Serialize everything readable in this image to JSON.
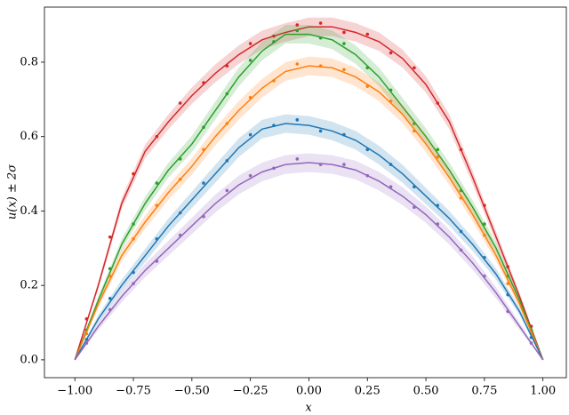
{
  "chart_data": {
    "type": "line",
    "xlabel": "x",
    "ylabel": "u(x) ± 2σ",
    "xlim": [
      -1.13,
      1.1
    ],
    "ylim": [
      -0.048,
      0.948
    ],
    "xticks": [
      {
        "value": -1,
        "label": "−1.00"
      },
      {
        "value": -0.75,
        "label": "−0.75"
      },
      {
        "value": -0.5,
        "label": "−0.50"
      },
      {
        "value": -0.25,
        "label": "−0.25"
      },
      {
        "value": 0,
        "label": "0.00"
      },
      {
        "value": 0.25,
        "label": "0.25"
      },
      {
        "value": 0.5,
        "label": "0.50"
      },
      {
        "value": 0.75,
        "label": "0.75"
      },
      {
        "value": 1,
        "label": "1.00"
      }
    ],
    "yticks": [
      {
        "value": 0,
        "label": "0.0"
      },
      0.2,
      0.4,
      0.6,
      0.8
    ],
    "x": [
      -1,
      -0.9,
      -0.8,
      -0.7,
      -0.6,
      -0.5,
      -0.4,
      -0.3,
      -0.2,
      -0.1,
      0,
      0.1,
      0.2,
      0.3,
      0.4,
      0.5,
      0.6,
      0.7,
      0.8,
      0.9,
      1
    ],
    "obs_x": [
      -0.95,
      -0.85,
      -0.75,
      -0.65,
      -0.55,
      -0.45,
      -0.35,
      -0.25,
      -0.15,
      -0.05,
      0.05,
      0.15,
      0.25,
      0.35,
      0.45,
      0.55,
      0.65,
      0.75,
      0.85,
      0.95
    ],
    "series": [
      {
        "color": "#d62728",
        "values": [
          0,
          0.2,
          0.42,
          0.56,
          0.64,
          0.71,
          0.77,
          0.82,
          0.86,
          0.88,
          0.895,
          0.895,
          0.88,
          0.855,
          0.81,
          0.74,
          0.64,
          0.49,
          0.33,
          0.17,
          0
        ],
        "errors": [
          0,
          0.01,
          0.015,
          0.018,
          0.02,
          0.022,
          0.024,
          0.025,
          0.025,
          0.025,
          0.025,
          0.025,
          0.025,
          0.025,
          0.024,
          0.022,
          0.02,
          0.018,
          0.015,
          0.01,
          0
        ],
        "obs": [
          0.11,
          0.33,
          0.5,
          0.6,
          0.69,
          0.745,
          0.79,
          0.85,
          0.87,
          0.9,
          0.905,
          0.88,
          0.875,
          0.825,
          0.785,
          0.69,
          0.565,
          0.415,
          0.25,
          0.09
        ]
      },
      {
        "color": "#2ca02c",
        "values": [
          0,
          0.16,
          0.31,
          0.42,
          0.51,
          0.58,
          0.67,
          0.76,
          0.83,
          0.875,
          0.875,
          0.86,
          0.82,
          0.76,
          0.68,
          0.6,
          0.51,
          0.41,
          0.3,
          0.16,
          0
        ],
        "errors": [
          0,
          0.01,
          0.015,
          0.018,
          0.02,
          0.022,
          0.024,
          0.025,
          0.025,
          0.025,
          0.025,
          0.025,
          0.025,
          0.025,
          0.024,
          0.022,
          0.02,
          0.018,
          0.015,
          0.01,
          0
        ],
        "obs": [
          0.08,
          0.245,
          0.365,
          0.475,
          0.54,
          0.625,
          0.715,
          0.805,
          0.855,
          0.885,
          0.865,
          0.85,
          0.785,
          0.725,
          0.635,
          0.565,
          0.455,
          0.365,
          0.225,
          0.08
        ]
      },
      {
        "color": "#ff7f0e",
        "values": [
          0,
          0.15,
          0.28,
          0.37,
          0.45,
          0.52,
          0.6,
          0.67,
          0.73,
          0.775,
          0.79,
          0.785,
          0.76,
          0.72,
          0.66,
          0.58,
          0.49,
          0.39,
          0.28,
          0.15,
          0
        ],
        "errors": [
          0,
          0.01,
          0.015,
          0.018,
          0.02,
          0.022,
          0.024,
          0.025,
          0.025,
          0.025,
          0.025,
          0.025,
          0.025,
          0.025,
          0.024,
          0.022,
          0.02,
          0.018,
          0.015,
          0.01,
          0
        ],
        "obs": [
          0.07,
          0.225,
          0.325,
          0.415,
          0.485,
          0.565,
          0.635,
          0.705,
          0.75,
          0.795,
          0.79,
          0.78,
          0.735,
          0.695,
          0.615,
          0.545,
          0.435,
          0.335,
          0.205,
          0.07
        ]
      },
      {
        "color": "#1f77b4",
        "values": [
          0,
          0.11,
          0.2,
          0.28,
          0.36,
          0.43,
          0.5,
          0.57,
          0.62,
          0.635,
          0.63,
          0.615,
          0.59,
          0.55,
          0.5,
          0.44,
          0.38,
          0.31,
          0.23,
          0.13,
          0
        ],
        "errors": [
          0,
          0.01,
          0.015,
          0.018,
          0.02,
          0.022,
          0.024,
          0.025,
          0.025,
          0.025,
          0.025,
          0.025,
          0.025,
          0.025,
          0.024,
          0.022,
          0.02,
          0.018,
          0.015,
          0.01,
          0
        ],
        "obs": [
          0.055,
          0.165,
          0.235,
          0.325,
          0.395,
          0.475,
          0.535,
          0.605,
          0.63,
          0.645,
          0.615,
          0.605,
          0.565,
          0.525,
          0.465,
          0.415,
          0.345,
          0.275,
          0.175,
          0.06
        ]
      },
      {
        "color": "#9467bd",
        "values": [
          0,
          0.09,
          0.17,
          0.24,
          0.3,
          0.36,
          0.42,
          0.47,
          0.505,
          0.525,
          0.53,
          0.525,
          0.51,
          0.48,
          0.44,
          0.39,
          0.33,
          0.26,
          0.18,
          0.09,
          0
        ],
        "errors": [
          0,
          0.01,
          0.015,
          0.018,
          0.02,
          0.022,
          0.024,
          0.025,
          0.025,
          0.025,
          0.025,
          0.025,
          0.025,
          0.025,
          0.024,
          0.022,
          0.02,
          0.018,
          0.015,
          0.01,
          0
        ],
        "obs": [
          0.045,
          0.135,
          0.205,
          0.265,
          0.335,
          0.385,
          0.455,
          0.495,
          0.515,
          0.54,
          0.525,
          0.525,
          0.495,
          0.465,
          0.41,
          0.365,
          0.295,
          0.225,
          0.13,
          0.045
        ]
      }
    ]
  }
}
